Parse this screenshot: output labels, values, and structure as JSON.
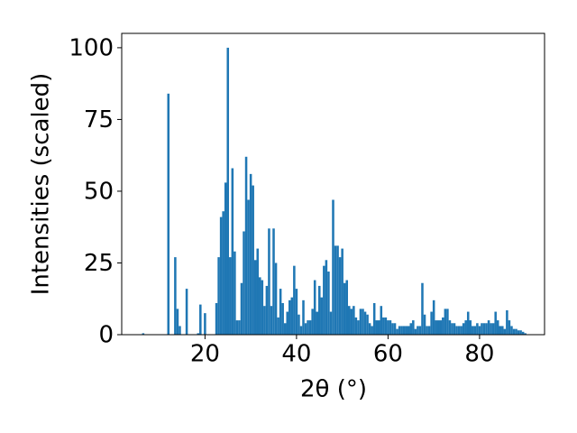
{
  "chart_data": {
    "type": "bar",
    "xlabel": "2θ (°)",
    "ylabel": "Intensities (scaled)",
    "color": "#1f77b4",
    "x": [
      6.5,
      12,
      13.5,
      14,
      14.5,
      16,
      18.5,
      19,
      20,
      22.5,
      23,
      23.5,
      24,
      24.5,
      25,
      25.5,
      26,
      26.5,
      27,
      27.5,
      28,
      28.5,
      29,
      29.5,
      30,
      30.5,
      31,
      31.5,
      32,
      32.5,
      33,
      33.5,
      34,
      34.5,
      35,
      35.5,
      36,
      36.5,
      37,
      37.5,
      38,
      38.5,
      39,
      39.5,
      40,
      40.5,
      41,
      41.5,
      42,
      42.5,
      43,
      43.5,
      44,
      44.5,
      45,
      45.5,
      46,
      46.5,
      47,
      47.5,
      48,
      48.5,
      49,
      49.5,
      50,
      50.5,
      51,
      51.5,
      52,
      52.5,
      53,
      53.5,
      54,
      54.5,
      55,
      55.5,
      56,
      56.5,
      57,
      57.5,
      58,
      58.5,
      59,
      59.5,
      60,
      60.5,
      61,
      61.5,
      62,
      62.5,
      63,
      63.5,
      64,
      64.5,
      65,
      65.5,
      66,
      66.5,
      67,
      67.5,
      68,
      68.5,
      69,
      69.5,
      70,
      70.5,
      71,
      71.5,
      72,
      72.5,
      73,
      73.5,
      74,
      74.5,
      75,
      75.5,
      76,
      76.5,
      77,
      77.5,
      78,
      78.5,
      79,
      79.5,
      80,
      80.5,
      81,
      81.5,
      82,
      82.5,
      83,
      83.5,
      84,
      84.5,
      85,
      85.5,
      86,
      86.5,
      87,
      87.5,
      88,
      88.5,
      89,
      89.5,
      90
    ],
    "values": [
      0.5,
      84,
      27,
      9,
      3,
      16,
      0.5,
      10.5,
      7.5,
      11,
      27,
      41,
      43,
      53,
      100,
      27,
      58,
      29,
      5,
      5,
      18,
      36,
      62,
      47,
      56,
      52,
      26,
      30,
      20,
      19,
      10,
      17,
      37,
      10,
      37,
      25,
      6,
      16,
      11,
      4,
      8,
      12,
      13,
      24,
      16,
      7,
      3,
      12,
      4,
      5,
      5,
      9,
      19,
      8,
      17,
      13,
      24,
      26,
      22,
      8,
      47,
      31,
      31,
      27,
      30,
      18,
      19,
      10,
      9,
      10,
      6,
      5,
      9,
      9,
      8,
      7,
      4,
      3,
      11,
      5,
      5,
      10,
      6,
      6,
      5,
      5,
      4,
      4,
      2,
      3,
      3,
      3,
      3,
      3,
      4,
      5,
      2,
      3,
      3,
      18,
      7,
      3,
      3,
      8,
      12,
      5,
      5,
      5,
      6,
      9,
      9,
      5,
      4,
      4,
      3,
      3,
      3,
      4,
      5,
      8,
      5,
      3,
      3,
      4,
      3,
      4,
      4,
      4,
      5,
      4,
      4,
      8,
      5,
      3,
      3,
      2,
      8.5,
      5,
      3,
      2,
      2,
      1.5,
      1.5,
      1,
      0.5
    ],
    "xlim": [
      1.8,
      94.2
    ],
    "ylim": [
      0,
      105
    ],
    "xticks": [
      20,
      40,
      60,
      80
    ],
    "yticks": [
      0,
      25,
      50,
      75,
      100
    ]
  }
}
